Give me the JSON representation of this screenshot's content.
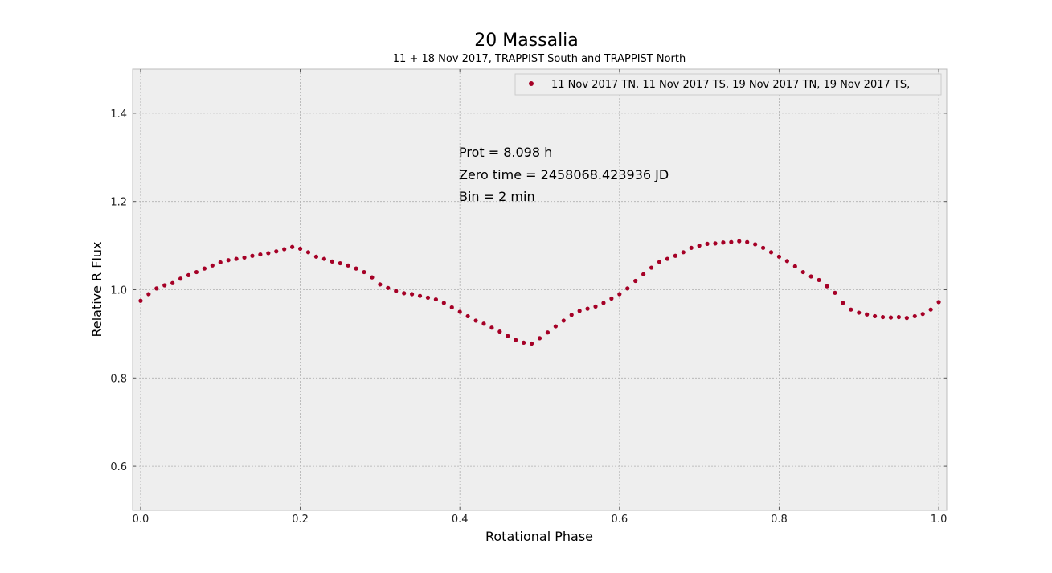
{
  "chart_data": {
    "type": "scatter",
    "title": "20 Massalia",
    "subtitle": "11 + 18 Nov 2017, TRAPPIST South and TRAPPIST North",
    "xlabel": "Rotational Phase",
    "ylabel": "Relative R Flux",
    "xlim": [
      -0.01,
      1.01
    ],
    "ylim": [
      0.5,
      1.5
    ],
    "xticks": [
      0.0,
      0.2,
      0.4,
      0.6,
      0.8,
      1.0
    ],
    "xtick_labels": [
      "0.0",
      "0.2",
      "0.4",
      "0.6",
      "0.8",
      "1.0"
    ],
    "yticks": [
      0.6,
      0.8,
      1.0,
      1.2,
      1.4
    ],
    "ytick_labels": [
      "0.6",
      "0.8",
      "1.0",
      "1.2",
      "1.4"
    ],
    "grid": true,
    "legend_position": "top-right",
    "annotations": [
      "Prot = 8.098 h",
      "Zero time = 2458068.423936 JD",
      "Bin = 2 min"
    ],
    "series": [
      {
        "name": "11 Nov 2017 TN, 11 Nov 2017 TS, 19 Nov 2017 TN, 19 Nov 2017 TS,",
        "color": "#a50026",
        "x": [
          0.0,
          0.01,
          0.02,
          0.03,
          0.04,
          0.05,
          0.06,
          0.07,
          0.08,
          0.09,
          0.1,
          0.11,
          0.12,
          0.13,
          0.14,
          0.15,
          0.16,
          0.17,
          0.18,
          0.19,
          0.2,
          0.21,
          0.22,
          0.23,
          0.24,
          0.25,
          0.26,
          0.27,
          0.28,
          0.29,
          0.3,
          0.31,
          0.32,
          0.33,
          0.34,
          0.35,
          0.36,
          0.37,
          0.38,
          0.39,
          0.4,
          0.41,
          0.42,
          0.43,
          0.44,
          0.45,
          0.46,
          0.47,
          0.48,
          0.49,
          0.5,
          0.51,
          0.52,
          0.53,
          0.54,
          0.55,
          0.56,
          0.57,
          0.58,
          0.59,
          0.6,
          0.61,
          0.62,
          0.63,
          0.64,
          0.65,
          0.66,
          0.67,
          0.68,
          0.69,
          0.7,
          0.71,
          0.72,
          0.73,
          0.74,
          0.75,
          0.76,
          0.77,
          0.78,
          0.79,
          0.8,
          0.81,
          0.82,
          0.83,
          0.84,
          0.85,
          0.86,
          0.87,
          0.88,
          0.89,
          0.9,
          0.91,
          0.92,
          0.93,
          0.94,
          0.95,
          0.96,
          0.97,
          0.98,
          0.99,
          1.0
        ],
        "y": [
          0.975,
          0.99,
          1.003,
          1.01,
          1.015,
          1.025,
          1.033,
          1.04,
          1.048,
          1.055,
          1.062,
          1.067,
          1.07,
          1.073,
          1.077,
          1.08,
          1.083,
          1.087,
          1.092,
          1.097,
          1.093,
          1.085,
          1.075,
          1.07,
          1.064,
          1.06,
          1.055,
          1.048,
          1.04,
          1.028,
          1.012,
          1.004,
          0.997,
          0.992,
          0.99,
          0.986,
          0.982,
          0.978,
          0.97,
          0.96,
          0.95,
          0.94,
          0.93,
          0.923,
          0.914,
          0.905,
          0.895,
          0.886,
          0.88,
          0.878,
          0.89,
          0.903,
          0.917,
          0.93,
          0.943,
          0.952,
          0.957,
          0.962,
          0.97,
          0.98,
          0.99,
          1.003,
          1.02,
          1.035,
          1.05,
          1.063,
          1.07,
          1.077,
          1.085,
          1.095,
          1.1,
          1.104,
          1.105,
          1.107,
          1.108,
          1.11,
          1.108,
          1.103,
          1.095,
          1.085,
          1.075,
          1.065,
          1.053,
          1.04,
          1.03,
          1.022,
          1.008,
          0.993,
          0.97,
          0.955,
          0.948,
          0.944,
          0.94,
          0.938,
          0.937,
          0.938,
          0.936,
          0.94,
          0.945,
          0.955,
          0.972
        ]
      }
    ]
  }
}
